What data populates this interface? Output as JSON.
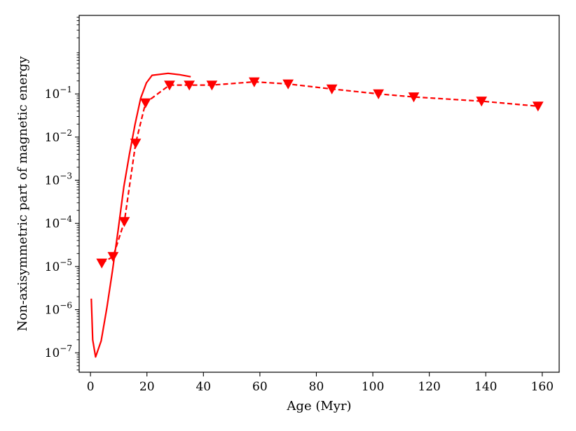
{
  "chart_data": {
    "type": "line",
    "xlabel": "Age (Myr)",
    "ylabel": "Non-axisymmetric part of magnetic energy",
    "xlim": [
      -4,
      166
    ],
    "ylim_log10": [
      -7.45,
      0.82
    ],
    "yscale": "log",
    "grid": false,
    "colors": {
      "series": "#ff0000",
      "axes": "#000000"
    },
    "x_ticks": [
      0,
      20,
      40,
      60,
      80,
      100,
      120,
      140,
      160
    ],
    "y_ticks": [
      {
        "base": "10",
        "exp": "-7",
        "log": -7
      },
      {
        "base": "10",
        "exp": "-6",
        "log": -6
      },
      {
        "base": "10",
        "exp": "-5",
        "log": -5
      },
      {
        "base": "10",
        "exp": "-4",
        "log": -4
      },
      {
        "base": "10",
        "exp": "-3",
        "log": -3
      },
      {
        "base": "10",
        "exp": "-2",
        "log": -2
      },
      {
        "base": "10",
        "exp": "-1",
        "log": -1
      }
    ],
    "series": [
      {
        "style": "solid",
        "marker": "none",
        "x": [
          0.3,
          0.8,
          1.8,
          3.8,
          5.8,
          7.8,
          9.8,
          11.8,
          13.8,
          15.8,
          17.8,
          19.8,
          21.8,
          27.5,
          31.5,
          35.5
        ],
        "y": [
          1.8e-06,
          2e-07,
          8e-08,
          1.9e-07,
          1.1e-06,
          8e-06,
          7e-05,
          0.0007,
          0.004,
          0.02,
          0.08,
          0.18,
          0.27,
          0.3,
          0.28,
          0.25
        ]
      },
      {
        "style": "dashed",
        "marker": "triangle-down",
        "x": [
          4,
          8,
          12,
          16,
          19.5,
          28,
          35,
          43,
          58,
          70,
          85.5,
          102,
          114.5,
          138.5,
          158.5
        ],
        "y": [
          1.2e-05,
          1.7e-05,
          0.00011,
          0.0072,
          0.062,
          0.16,
          0.16,
          0.16,
          0.19,
          0.17,
          0.13,
          0.1,
          0.085,
          0.068,
          0.052
        ]
      }
    ]
  }
}
